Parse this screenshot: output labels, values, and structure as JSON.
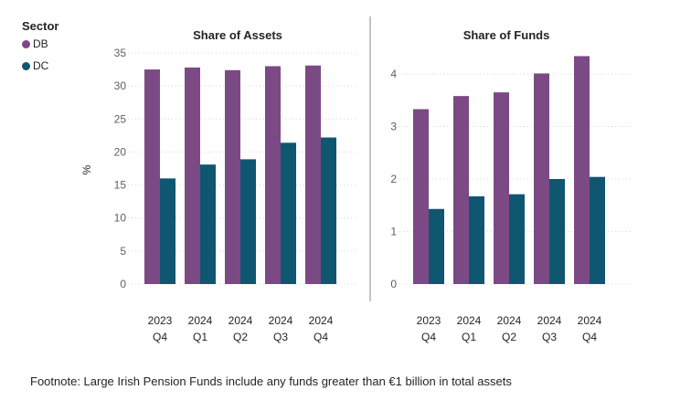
{
  "legend": {
    "title": "Sector",
    "items": [
      {
        "label": "DB",
        "color": "#7b4a84"
      },
      {
        "label": "DC",
        "color": "#0f5670"
      }
    ]
  },
  "footnote": "Footnote: Large Irish Pension Funds include any funds greater than €1 billion in total assets",
  "chart_data": [
    {
      "type": "bar",
      "title": "Share of Assets",
      "xlabel": "",
      "ylabel": "%",
      "categories": [
        [
          "2023",
          "Q4"
        ],
        [
          "2024",
          "Q1"
        ],
        [
          "2024",
          "Q2"
        ],
        [
          "2024",
          "Q3"
        ],
        [
          "2024",
          "Q4"
        ]
      ],
      "ylim": [
        0,
        35
      ],
      "yticks": [
        0,
        5,
        10,
        15,
        20,
        25,
        30,
        35
      ],
      "grid": true,
      "series": [
        {
          "name": "DB",
          "color": "#7b4a84",
          "values": [
            32.5,
            32.8,
            32.4,
            33.0,
            33.1
          ]
        },
        {
          "name": "DC",
          "color": "#0f5670",
          "values": [
            16.0,
            18.1,
            18.9,
            21.4,
            22.2
          ]
        }
      ]
    },
    {
      "type": "bar",
      "title": "Share of Funds",
      "xlabel": "",
      "ylabel": "",
      "categories": [
        [
          "2023",
          "Q4"
        ],
        [
          "2024",
          "Q1"
        ],
        [
          "2024",
          "Q2"
        ],
        [
          "2024",
          "Q3"
        ],
        [
          "2024",
          "Q4"
        ]
      ],
      "ylim": [
        0,
        4.4
      ],
      "yticks": [
        0,
        1,
        2,
        3,
        4
      ],
      "grid": true,
      "series": [
        {
          "name": "DB",
          "color": "#7b4a84",
          "values": [
            3.33,
            3.58,
            3.65,
            4.01,
            4.34
          ]
        },
        {
          "name": "DC",
          "color": "#0f5670",
          "values": [
            1.43,
            1.67,
            1.71,
            2.0,
            2.04
          ]
        }
      ]
    }
  ]
}
